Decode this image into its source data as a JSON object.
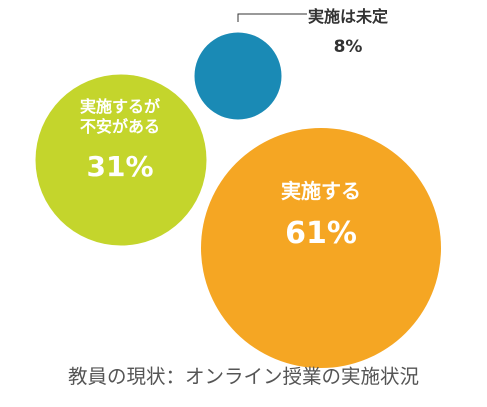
{
  "chart_data": {
    "type": "bubble",
    "title": "教員の現状：オンライン授業の実施状況",
    "unit": "%",
    "items": [
      {
        "label": [
          "実施する"
        ],
        "value": 61,
        "value_text": "61%",
        "color": "#F5A623",
        "text_color": "#ffffff"
      },
      {
        "label": [
          "実施するが",
          "不安がある"
        ],
        "value": 31,
        "value_text": "31%",
        "color": "#C4D52C",
        "text_color": "#ffffff"
      },
      {
        "label": [
          "実施は未定"
        ],
        "value": 8,
        "value_text": "8%",
        "color": "#1A8AB5",
        "text_color": "#333333"
      }
    ],
    "colors": {
      "title_text": "#555555",
      "leader_line": "#333333"
    }
  }
}
